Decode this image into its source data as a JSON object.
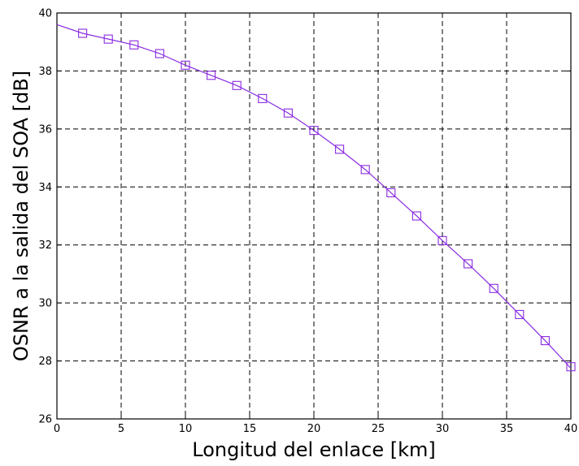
{
  "chart_data": {
    "type": "line",
    "xlabel": "Longitud del enlace [km]",
    "ylabel": "OSNR a la salida del SOA [dB]",
    "xlim": [
      0,
      40
    ],
    "ylim": [
      26,
      40
    ],
    "x_ticks": [
      0,
      5,
      10,
      15,
      20,
      25,
      30,
      35,
      40
    ],
    "y_ticks": [
      26,
      28,
      30,
      32,
      34,
      36,
      38,
      40
    ],
    "grid": true,
    "line_color": "#8a2be2",
    "marker": "square",
    "curve": {
      "x": [
        0,
        2,
        4,
        6,
        8,
        10,
        12,
        14,
        16,
        18,
        20,
        22,
        24,
        26,
        28,
        30,
        32,
        34,
        36,
        38,
        40
      ],
      "y": [
        39.6,
        39.3,
        39.1,
        38.9,
        38.6,
        38.2,
        37.85,
        37.5,
        37.05,
        36.55,
        35.95,
        35.3,
        34.6,
        33.8,
        33.0,
        32.15,
        31.35,
        30.5,
        29.6,
        28.7,
        27.75
      ]
    },
    "series": [
      {
        "x": [
          2,
          4,
          6,
          8,
          10,
          12,
          14,
          16,
          18,
          20,
          22,
          24,
          26,
          28,
          30,
          32,
          34,
          36,
          38,
          40
        ],
        "values": [
          39.3,
          39.1,
          38.9,
          38.6,
          38.2,
          37.85,
          37.5,
          37.05,
          36.55,
          35.95,
          35.3,
          34.6,
          33.8,
          33.0,
          32.15,
          31.35,
          30.5,
          29.6,
          28.7,
          27.8
        ]
      }
    ]
  }
}
